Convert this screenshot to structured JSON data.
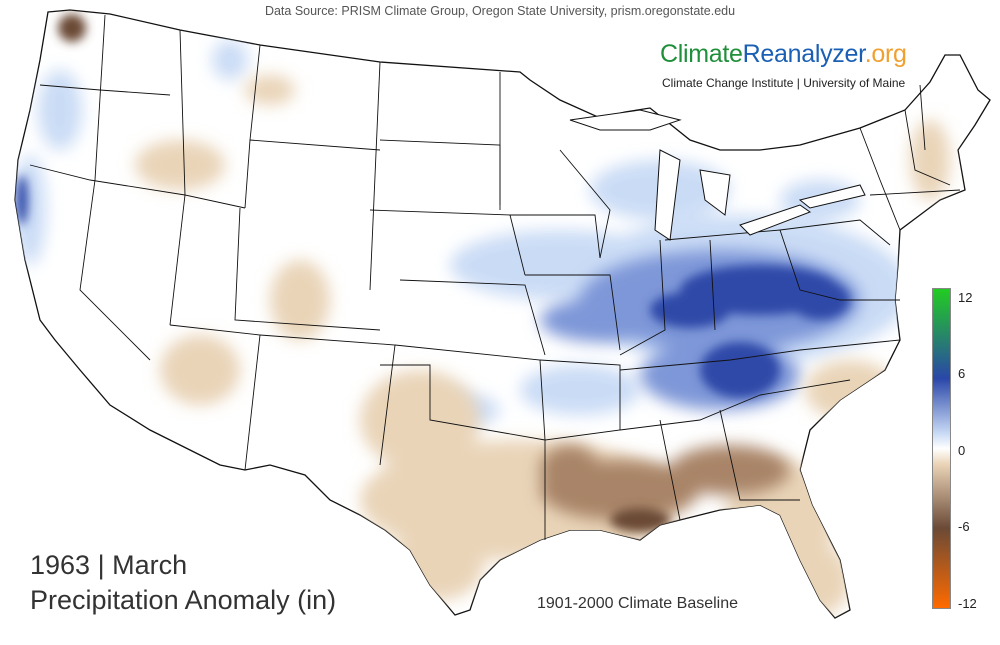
{
  "header": {
    "data_source": "Data Source: PRISM Climate Group, Oregon State University, prism.oregonstate.edu"
  },
  "brand": {
    "part1": "Climate",
    "part2": "Reanalyzer",
    "part3": ".org",
    "subtitle": "Climate Change Institute | University of Maine",
    "colors": {
      "climate": "#1f8f3a",
      "reanalyzer": "#1a5fb4",
      "org": "#f0a030"
    }
  },
  "map": {
    "year_month": "1963 | March",
    "metric": "Precipitation Anomaly (in)",
    "baseline": "1901-2000 Climate Baseline"
  },
  "legend": {
    "ticks": [
      "12",
      "6",
      "0",
      "-6",
      "-12"
    ],
    "colors": {
      "high": "#22cc22",
      "wet": "#2a47a8",
      "slightly_wet": "#c6d8f4",
      "neutral": "#ffffff",
      "slightly_dry": "#ead3b6",
      "dry": "#6b4a36",
      "low": "#ff6a00"
    }
  }
}
